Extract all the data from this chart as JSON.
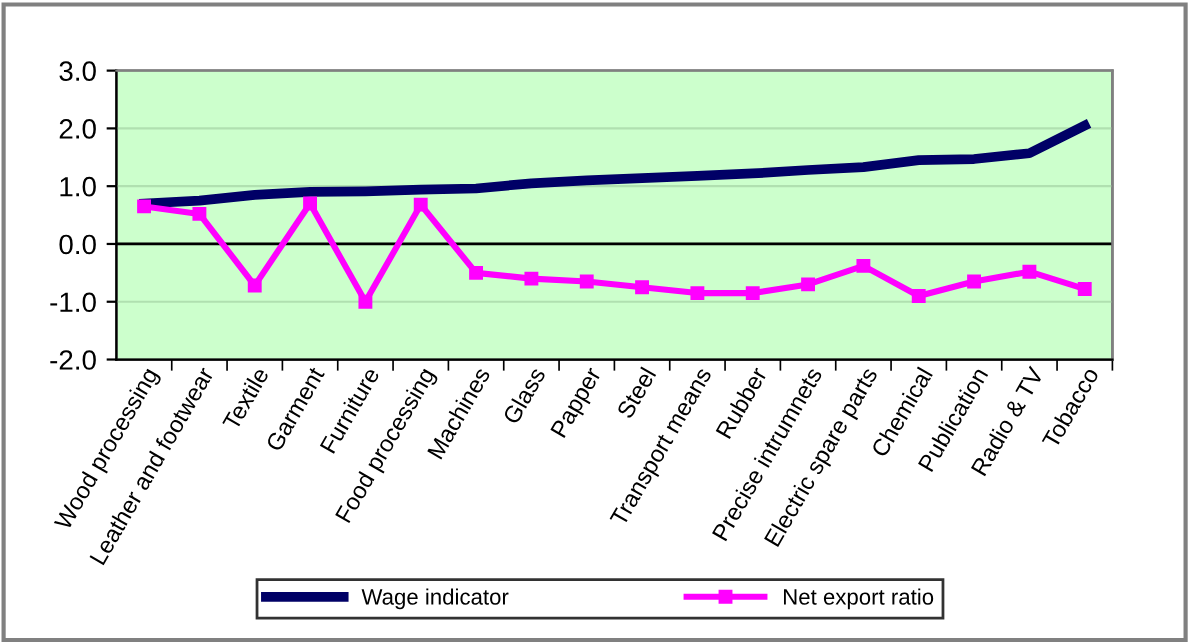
{
  "chart_data": {
    "type": "line",
    "categories": [
      "Wood processing",
      "Leather and footwear",
      "Textile",
      "Garment",
      "Furniture",
      "Food processing",
      "Machines",
      "Glass",
      "Papper",
      "Steel",
      "Transport means",
      "Rubber",
      "Precise intrumnets",
      "Electric spare parts",
      "Chemical",
      "Publication",
      "Radio & TV",
      "Tobacco"
    ],
    "series": [
      {
        "name": "Wage indicator",
        "color": "#000066",
        "marker": "none",
        "values": [
          0.7,
          0.75,
          0.85,
          0.9,
          0.91,
          0.94,
          0.96,
          1.05,
          1.1,
          1.14,
          1.18,
          1.22,
          1.28,
          1.33,
          1.45,
          1.47,
          1.57,
          2.05
        ]
      },
      {
        "name": "Net export ratio",
        "color": "#ff00ff",
        "marker": "square",
        "values": [
          0.65,
          0.52,
          -0.72,
          0.7,
          -1.0,
          0.68,
          -0.5,
          -0.6,
          -0.65,
          -0.75,
          -0.85,
          -0.85,
          -0.7,
          -0.38,
          -0.9,
          -0.65,
          -0.48,
          -0.78
        ]
      }
    ],
    "ylim": [
      -2.0,
      3.0
    ],
    "yticks": [
      {
        "value": -2,
        "label": "-2.0"
      },
      {
        "value": -1,
        "label": "-1.0"
      },
      {
        "value": 0,
        "label": "0.0"
      },
      {
        "value": 1,
        "label": "1.0"
      },
      {
        "value": 2,
        "label": "2.0"
      },
      {
        "value": 3,
        "label": "3.0"
      }
    ],
    "grid": "y",
    "legend": "bottom"
  }
}
